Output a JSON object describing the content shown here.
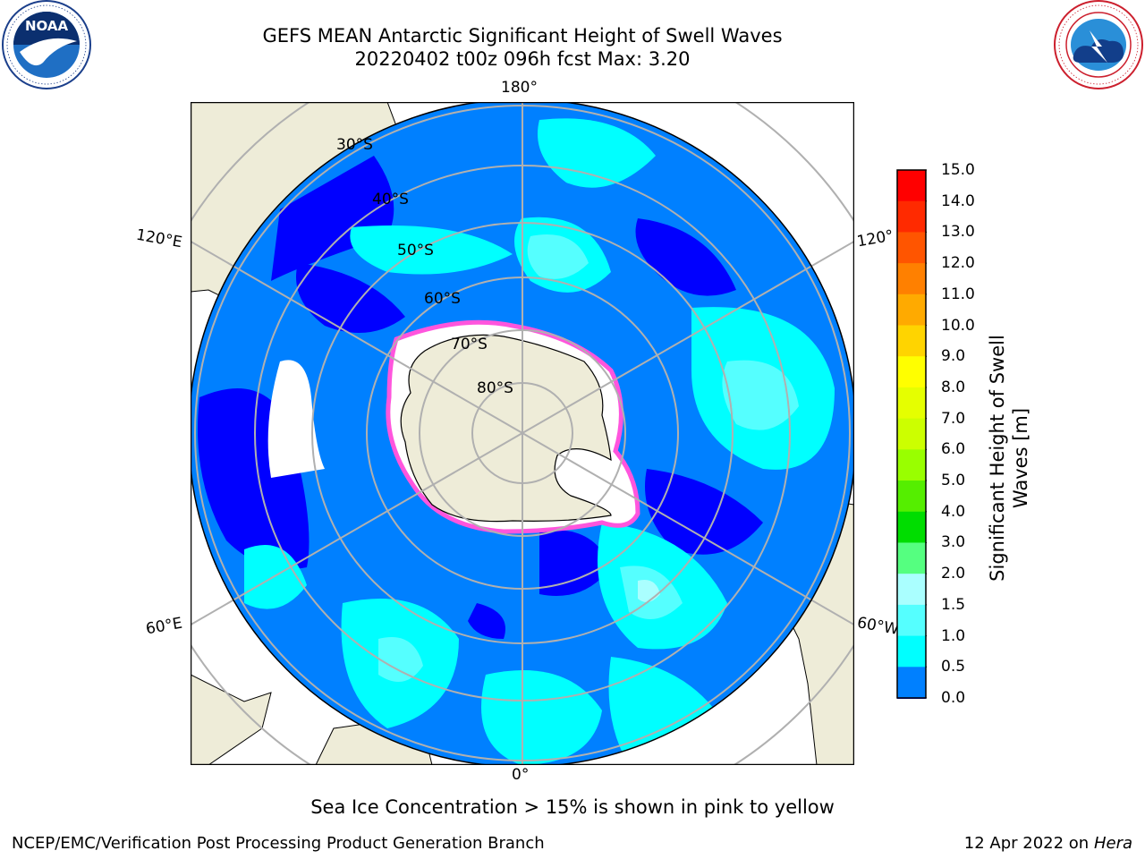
{
  "header": {
    "title_line1": "GEFS MEAN Antarctic Significant Height of Swell Waves",
    "title_line2": "20220402 t00z 096h fcst   Max: 3.20"
  },
  "logos": {
    "left": {
      "icon": "noaa-logo",
      "text": "NOAA",
      "ring_text": "NATIONAL OCEANIC AND ATMOSPHERIC ADMINISTRATION · U.S. DEPARTMENT OF COMMERCE"
    },
    "right": {
      "icon": "nws-logo",
      "ring_text": "NATIONAL WEATHER SERVICE"
    }
  },
  "map": {
    "projection": "south-polar-stereographic",
    "meridian_labels": {
      "top": "180°",
      "bottom": "0°",
      "left_upper": "120°E",
      "left_lower": "60°E",
      "right_upper": "120°",
      "right_lower": "60°W"
    },
    "latitude_labels": [
      "30°S",
      "40°S",
      "50°S",
      "60°S",
      "70°S",
      "80°S"
    ]
  },
  "colorbar": {
    "title_line1": "Significant Height of Swell",
    "title_line2": "Waves [m]",
    "ticks": [
      "15.0",
      "14.0",
      "13.0",
      "12.0",
      "11.0",
      "10.0",
      "9.0",
      "8.0",
      "7.0",
      "6.0",
      "5.0",
      "4.0",
      "3.0",
      "2.0",
      "1.5",
      "1.0",
      "0.5",
      "0.0"
    ],
    "colors_top_to_bottom": [
      "#ff0000",
      "#ff2a00",
      "#ff5500",
      "#ff8000",
      "#ffaa00",
      "#ffd400",
      "#ffff00",
      "#e5ff00",
      "#ccff00",
      "#99ff00",
      "#55ee00",
      "#00dd00",
      "#55ff80",
      "#aaffff",
      "#55ffff",
      "#00ffff",
      "#0080ff",
      "#0000ff"
    ],
    "selected_band_colors": {
      "0.0-0.5": "#0000ff",
      "0.5-1.0": "#0080ff",
      "1.0-1.5": "#00ffff",
      "1.5-2.0": "#55ffff",
      "2.0-3.0": "#aaffff"
    }
  },
  "colors": {
    "land": "#eeecd8",
    "sea_ice": "#ffffff",
    "ice_edge": "#ff66dd",
    "grid": "#b0b0b0"
  },
  "footer": {
    "note": "Sea Ice Concentration > 15% is shown in pink to yellow",
    "credit": "NCEP/EMC/Verification Post Processing Product Generation Branch",
    "date": "12 Apr 2022 on",
    "machine": "Hera"
  }
}
